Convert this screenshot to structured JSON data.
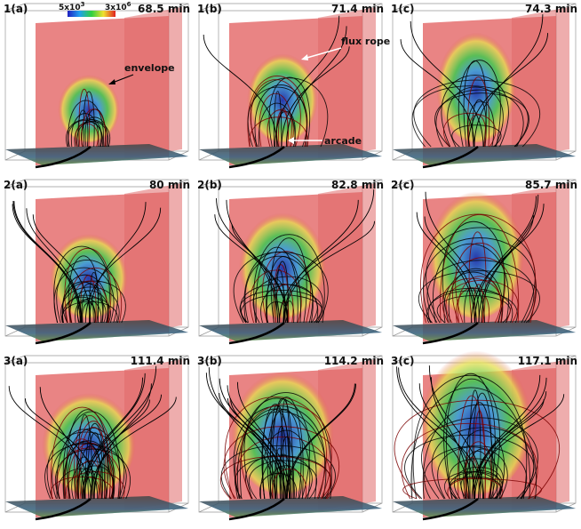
{
  "colorbar": {
    "min": {
      "base": "5x10",
      "exponent": "3"
    },
    "max": {
      "base": "3x10",
      "exponent": "6"
    }
  },
  "panels": [
    {
      "label": "1(a)",
      "time": "68.5 min",
      "annotations": [
        {
          "text": "envelope"
        }
      ]
    },
    {
      "label": "1(b)",
      "time": "71.4 min",
      "annotations": [
        {
          "text": "flux rope"
        },
        {
          "text": "arcade"
        }
      ]
    },
    {
      "label": "1(c)",
      "time": "74.3 min"
    },
    {
      "label": "2(a)",
      "time": "80 min"
    },
    {
      "label": "2(b)",
      "time": "82.8 min"
    },
    {
      "label": "2(c)",
      "time": "85.7 min"
    },
    {
      "label": "3(a)",
      "time": "111.4 min"
    },
    {
      "label": "3(b)",
      "time": "114.2 min"
    },
    {
      "label": "3(c)",
      "time": "117.1 min"
    }
  ]
}
